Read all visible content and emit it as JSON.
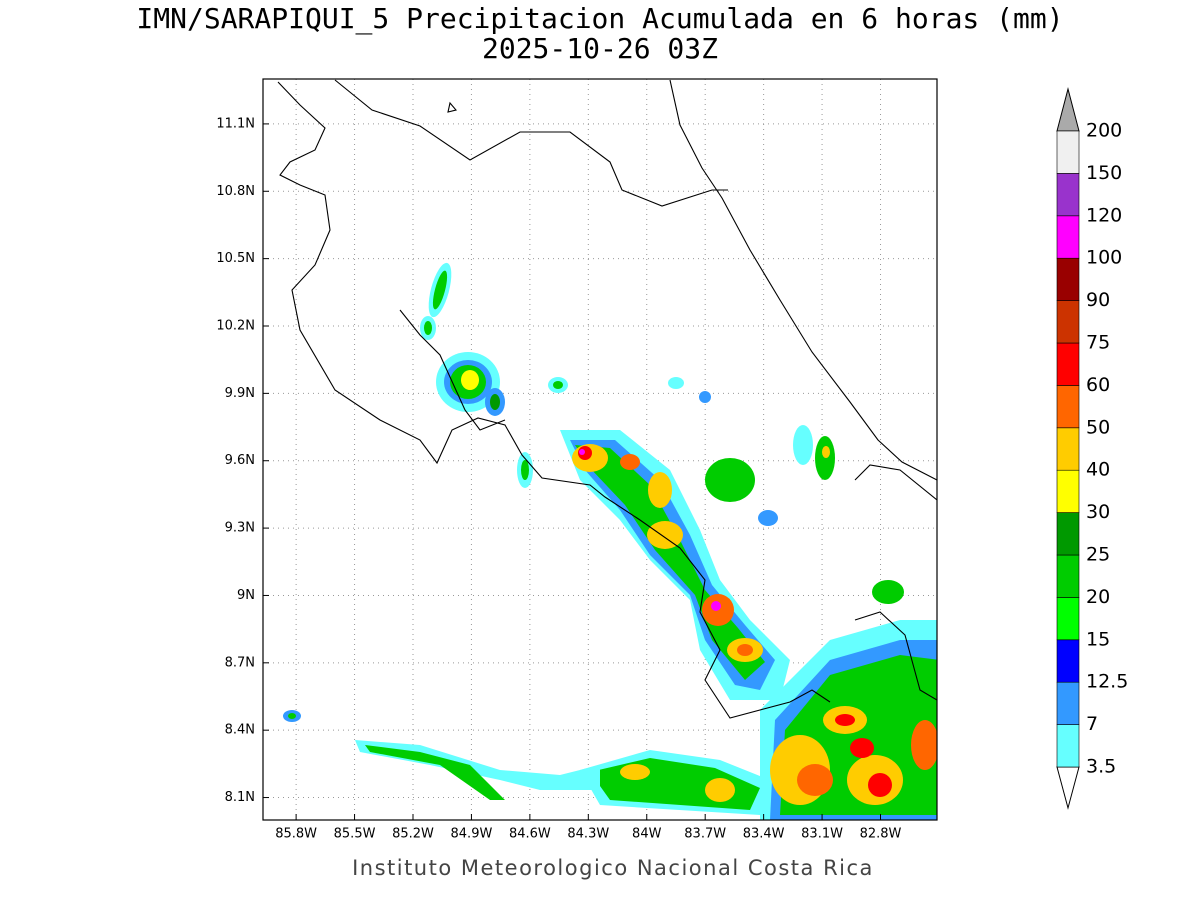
{
  "title": "IMN/SARAPIQUI_5 Precipitacion Acumulada en 6 horas (mm)",
  "subtitle": "2025-10-26 03Z",
  "map": {
    "xlim": [
      -85.97,
      -82.51
    ],
    "ylim": [
      8.0,
      11.3
    ],
    "xticks": [
      {
        "value": -85.8,
        "label": "85.8W"
      },
      {
        "value": -85.5,
        "label": "85.5W"
      },
      {
        "value": -85.2,
        "label": "85.2W"
      },
      {
        "value": -84.9,
        "label": "84.9W"
      },
      {
        "value": -84.6,
        "label": "84.6W"
      },
      {
        "value": -84.3,
        "label": "84.3W"
      },
      {
        "value": -84.0,
        "label": "84W"
      },
      {
        "value": -83.7,
        "label": "83.7W"
      },
      {
        "value": -83.4,
        "label": "83.4W"
      },
      {
        "value": -83.1,
        "label": "83.1W"
      },
      {
        "value": -82.8,
        "label": "82.8W"
      }
    ],
    "yticks": [
      {
        "value": 8.1,
        "label": "8.1N"
      },
      {
        "value": 8.4,
        "label": "8.4N"
      },
      {
        "value": 8.7,
        "label": "8.7N"
      },
      {
        "value": 9.0,
        "label": "9N"
      },
      {
        "value": 9.3,
        "label": "9.3N"
      },
      {
        "value": 9.6,
        "label": "9.6N"
      },
      {
        "value": 9.9,
        "label": "9.9N"
      },
      {
        "value": 10.2,
        "label": "10.2N"
      },
      {
        "value": 10.5,
        "label": "10.5N"
      },
      {
        "value": 10.8,
        "label": "10.8N"
      },
      {
        "value": 11.1,
        "label": "11.1N"
      }
    ],
    "grid": true
  },
  "colorbar": {
    "levels": [
      3.5,
      7,
      12.5,
      15,
      20,
      25,
      30,
      40,
      50,
      60,
      75,
      90,
      100,
      120,
      150,
      200
    ],
    "colors": [
      "#66ffff",
      "#3399ff",
      "#0000ff",
      "#00ff00",
      "#00cc00",
      "#009900",
      "#ffff00",
      "#ffcc00",
      "#ff6600",
      "#ff0000",
      "#cc3300",
      "#990000",
      "#ff00ff",
      "#9933cc",
      "#f0f0f0"
    ],
    "under_color": "#ffffff",
    "over_color": "#aaaaaa"
  },
  "footer": "Instituto Meteorologico Nacional Costa Rica"
}
